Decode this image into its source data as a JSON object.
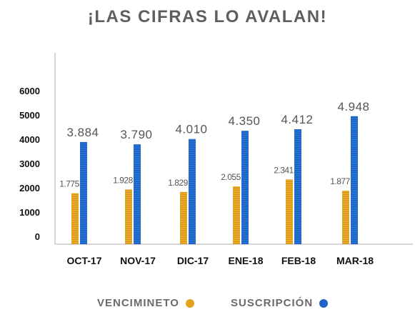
{
  "colors": {
    "vencimiento": "#e3a31d",
    "suscripcion": "#1f64c5",
    "axis": "#c9c9c9",
    "text": "#111111",
    "title": "#5e5e5e"
  },
  "legend": {
    "vencimiento_label": "VENCIMINETO",
    "suscripcion_label": "SUSCRIPCIÓN"
  },
  "chart_data": {
    "type": "bar",
    "title": "¡LAS CIFRAS LO AVALAN!",
    "categories": [
      "OCT-17",
      "NOV-17",
      "DIC-17",
      "ENE-18",
      "FEB-18",
      "MAR-18"
    ],
    "series": [
      {
        "name": "VENCIMINETO",
        "values": [
          1775,
          1928,
          1829,
          2055,
          2341,
          1877
        ],
        "labels": [
          "1.775",
          "1.928",
          "1.829",
          "2.055",
          "2.341",
          "1.877"
        ]
      },
      {
        "name": "SUSCRIPCIÓN",
        "values": [
          3884,
          3790,
          4010,
          4350,
          4412,
          4948
        ],
        "labels": [
          "3.884",
          "3.790",
          "4.010",
          "4.350",
          "4.412",
          "4.948"
        ]
      }
    ],
    "ylim": [
      0,
      6000
    ],
    "yticks": [
      0,
      1000,
      2000,
      3000,
      4000,
      5000,
      6000
    ],
    "ytick_labels": [
      "0",
      "1000",
      "2000",
      "3000",
      "4000",
      "5000",
      "6000"
    ],
    "grid": false,
    "legend_position": "bottom"
  }
}
